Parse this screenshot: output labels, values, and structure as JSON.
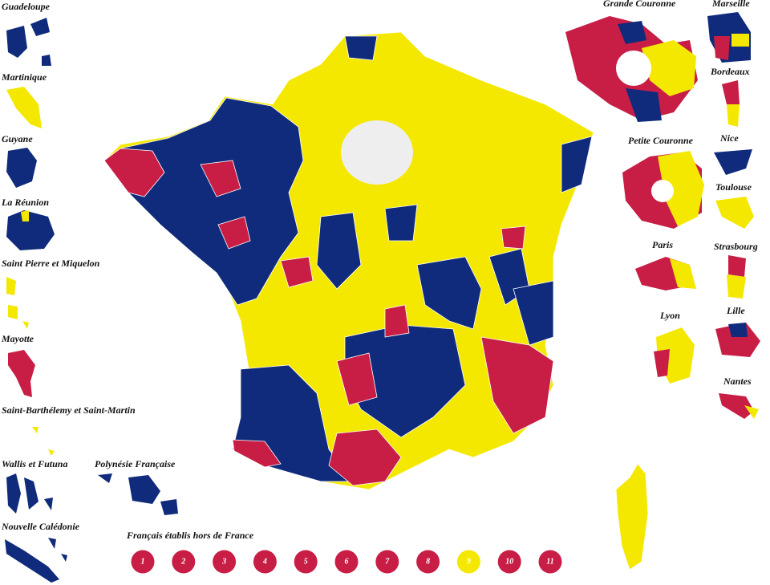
{
  "territories": [
    {
      "label": "Guadeloupe"
    },
    {
      "label": "Martinique"
    },
    {
      "label": "Guyane"
    },
    {
      "label": "La Réunion"
    },
    {
      "label": "Saint Pierre et Miquelon"
    },
    {
      "label": "Mayotte"
    },
    {
      "label": "Saint-Barthélemy et Saint-Martin"
    },
    {
      "label": "Wallis et Futuna"
    },
    {
      "label": "Polynésie Française"
    },
    {
      "label": "Nouvelle Calédonie"
    }
  ],
  "cities": [
    {
      "label": "Grande Couronne"
    },
    {
      "label": "Marseille"
    },
    {
      "label": "Bordeaux"
    },
    {
      "label": "Petite Couronne"
    },
    {
      "label": "Nice"
    },
    {
      "label": "Toulouse"
    },
    {
      "label": "Paris"
    },
    {
      "label": "Strasbourg"
    },
    {
      "label": "Lyon"
    },
    {
      "label": "Lille"
    },
    {
      "label": "Nantes"
    }
  ],
  "abroad": {
    "title": "Français établis hors de France",
    "constituencies": [
      {
        "label": "1",
        "color": "#c81e46"
      },
      {
        "label": "2",
        "color": "#c81e46"
      },
      {
        "label": "3",
        "color": "#c81e46"
      },
      {
        "label": "4",
        "color": "#c81e46"
      },
      {
        "label": "5",
        "color": "#c81e46"
      },
      {
        "label": "6",
        "color": "#c81e46"
      },
      {
        "label": "7",
        "color": "#c81e46"
      },
      {
        "label": "8",
        "color": "#c81e46"
      },
      {
        "label": "9",
        "color": "#f5e800"
      },
      {
        "label": "10",
        "color": "#c81e46"
      },
      {
        "label": "11",
        "color": "#c81e46"
      }
    ]
  }
}
